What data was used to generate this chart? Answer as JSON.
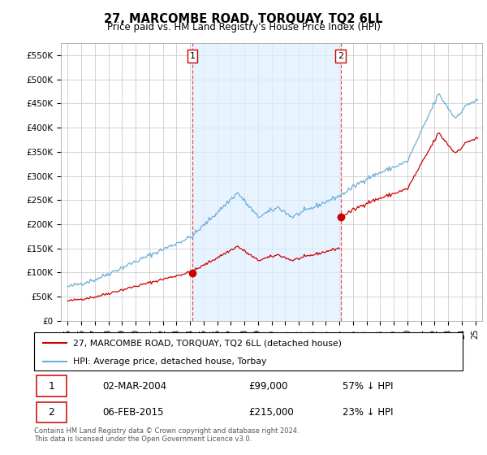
{
  "title": "27, MARCOMBE ROAD, TORQUAY, TQ2 6LL",
  "subtitle": "Price paid vs. HM Land Registry's House Price Index (HPI)",
  "ylabel_ticks": [
    "£0",
    "£50K",
    "£100K",
    "£150K",
    "£200K",
    "£250K",
    "£300K",
    "£350K",
    "£400K",
    "£450K",
    "£500K",
    "£550K"
  ],
  "ytick_values": [
    0,
    50000,
    100000,
    150000,
    200000,
    250000,
    300000,
    350000,
    400000,
    450000,
    500000,
    550000
  ],
  "ylim": [
    0,
    575000
  ],
  "sale1_date": 2004.17,
  "sale1_price": 99000,
  "sale2_date": 2015.08,
  "sale2_price": 215000,
  "sale1_text": "02-MAR-2004",
  "sale1_amount": "£99,000",
  "sale1_pct": "57% ↓ HPI",
  "sale2_text": "06-FEB-2015",
  "sale2_amount": "£215,000",
  "sale2_pct": "23% ↓ HPI",
  "legend_line1": "27, MARCOMBE ROAD, TORQUAY, TQ2 6LL (detached house)",
  "legend_line2": "HPI: Average price, detached house, Torbay",
  "footnote1": "Contains HM Land Registry data © Crown copyright and database right 2024.",
  "footnote2": "This data is licensed under the Open Government Licence v3.0.",
  "hpi_color": "#6baed6",
  "price_color": "#cc0000",
  "vline_color": "#e05050",
  "shade_color": "#ddeeff",
  "background_color": "#ffffff",
  "grid_color": "#cccccc"
}
